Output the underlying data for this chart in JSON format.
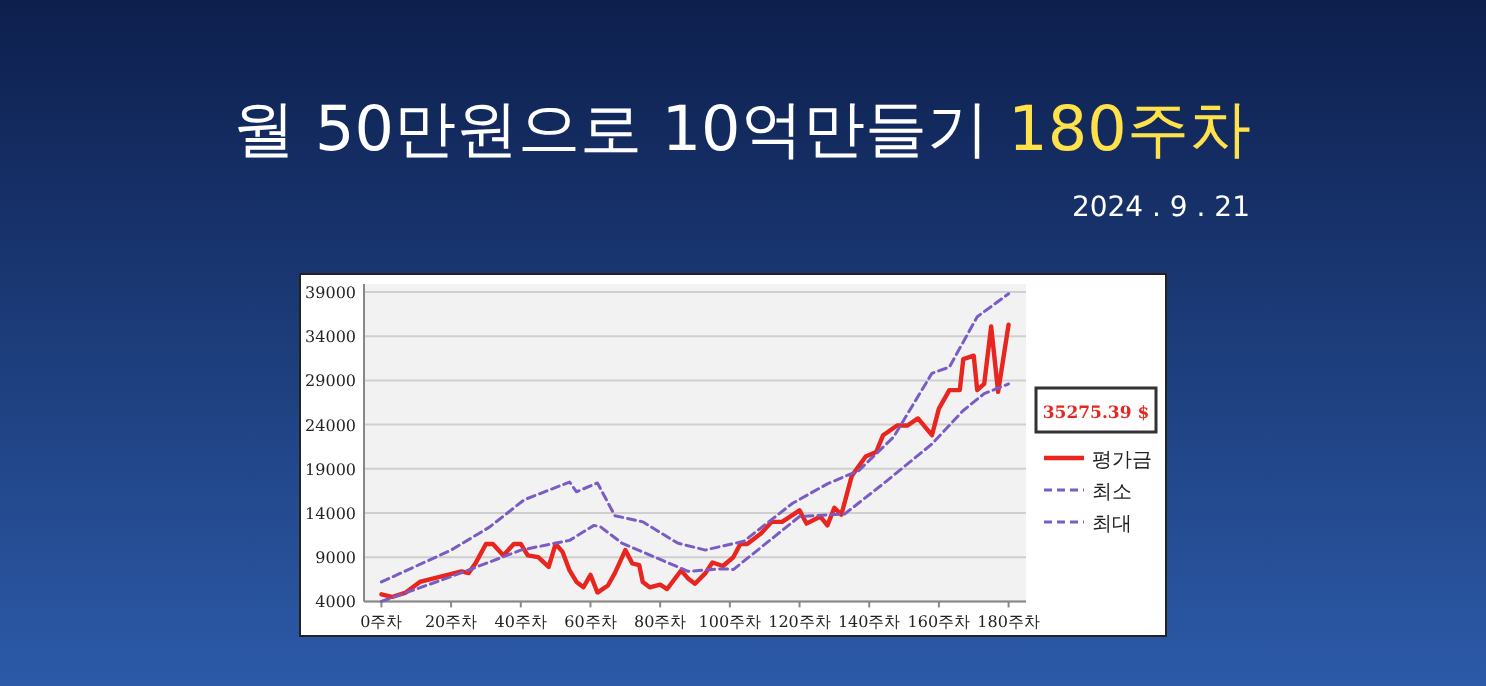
{
  "chart_data": {
    "type": "line",
    "title": "월 50만원으로 10억만들기 180주차",
    "subtitle": "2024 . 9 . 21",
    "annotations": [
      "35275.39 $"
    ],
    "xlim": [
      -5,
      185
    ],
    "xticks": [
      {
        "value": 0,
        "label": "0주차"
      },
      {
        "value": 20,
        "label": "20주차"
      },
      {
        "value": 40,
        "label": "40주차"
      },
      {
        "value": 60,
        "label": "60주차"
      },
      {
        "value": 80,
        "label": "80주차"
      },
      {
        "value": 100,
        "label": "100주차"
      },
      {
        "value": 120,
        "label": "120주차"
      },
      {
        "value": 140,
        "label": "140주차"
      },
      {
        "value": 160,
        "label": "160주차"
      },
      {
        "value": 180,
        "label": "180주차"
      }
    ],
    "ylim": [
      4000,
      39000
    ],
    "yticks": [
      4000,
      9000,
      14000,
      19000,
      24000,
      29000,
      34000,
      39000
    ],
    "grid": "y",
    "legend": "right",
    "marker": "none",
    "series": [
      {
        "name": "평가금",
        "color": "#e8251f",
        "line_style": "solid",
        "x": [
          0,
          3,
          7,
          11,
          15,
          19,
          23,
          25,
          27,
          30,
          32,
          35,
          38,
          40,
          42,
          45,
          48,
          50,
          52,
          54,
          56,
          58,
          60,
          62,
          65,
          67,
          70,
          72,
          74,
          75,
          77,
          80,
          82,
          86,
          88,
          90,
          93,
          95,
          98,
          101,
          103,
          105,
          109,
          112,
          115,
          120,
          122,
          126,
          128,
          130,
          132,
          135,
          139,
          142,
          144,
          148,
          151,
          154,
          158,
          160,
          163,
          166,
          167,
          170,
          171,
          173,
          175,
          177,
          180
        ],
        "values": [
          4800,
          4500,
          5000,
          6200,
          6600,
          7000,
          7400,
          7200,
          8300,
          10500,
          10500,
          9200,
          10500,
          10500,
          9200,
          9000,
          7900,
          10500,
          9600,
          7500,
          6200,
          5600,
          7000,
          5000,
          5800,
          7200,
          9800,
          8300,
          8100,
          6200,
          5600,
          5900,
          5400,
          7500,
          6600,
          6000,
          7200,
          8400,
          8000,
          9000,
          10500,
          10500,
          11700,
          13000,
          13000,
          14300,
          12800,
          13600,
          12600,
          14600,
          13800,
          18200,
          20400,
          20900,
          22800,
          23900,
          23900,
          24700,
          22800,
          25800,
          27900,
          27900,
          31400,
          31800,
          27900,
          28600,
          35100,
          27700,
          35300
        ]
      },
      {
        "name": "최소",
        "color": "#7b5cc4",
        "line_style": "dashed",
        "x": [
          0,
          20,
          40,
          54,
          61,
          63,
          69,
          88,
          98,
          101,
          120,
          133,
          144,
          158,
          167,
          173,
          180
        ],
        "values": [
          4000,
          6800,
          9800,
          10900,
          12600,
          12400,
          10600,
          7400,
          7700,
          7600,
          13600,
          13900,
          17300,
          21800,
          25600,
          27500,
          28600
        ]
      },
      {
        "name": "최대",
        "color": "#7b5cc4",
        "line_style": "dashed",
        "x": [
          0,
          20,
          31,
          41,
          54,
          56,
          62,
          67,
          75,
          85,
          93,
          95,
          104,
          118,
          128,
          137,
          147,
          158,
          163,
          171,
          180
        ],
        "values": [
          6200,
          9800,
          12400,
          15500,
          17500,
          16400,
          17400,
          13700,
          13000,
          10600,
          9800,
          10000,
          10800,
          15100,
          17300,
          18800,
          22600,
          29800,
          30500,
          36200,
          38800
        ]
      }
    ]
  }
}
